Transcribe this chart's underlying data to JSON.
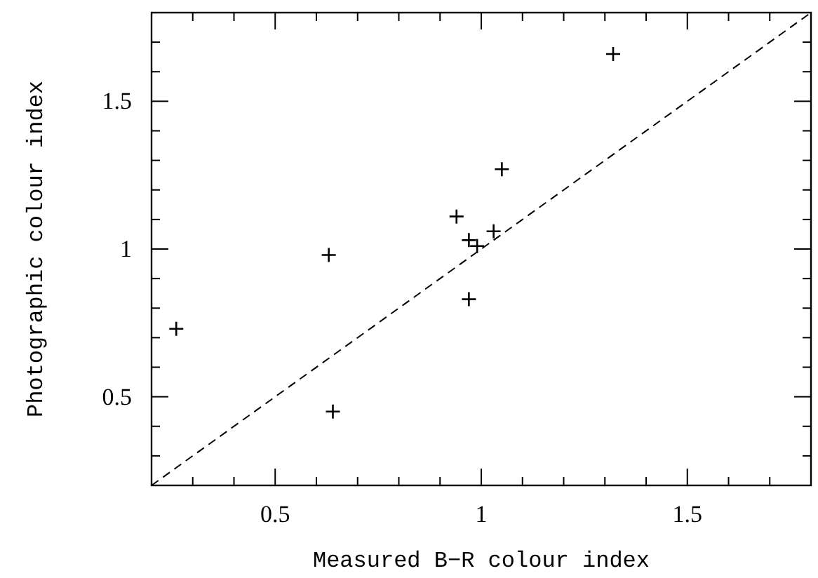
{
  "chart_data": {
    "type": "scatter",
    "xlabel": "Measured B−R colour index",
    "ylabel": "Photographic colour index",
    "xlim": [
      0.2,
      1.8
    ],
    "ylim": [
      0.2,
      1.8
    ],
    "xticks": [
      {
        "value": 0.3,
        "label": null
      },
      {
        "value": 0.4,
        "label": null
      },
      0.5,
      {
        "value": 0.6,
        "label": null
      },
      {
        "value": 0.7,
        "label": null
      },
      {
        "value": 0.8,
        "label": null
      },
      {
        "value": 0.9,
        "label": null
      },
      1,
      {
        "value": 1.1,
        "label": null
      },
      {
        "value": 1.2,
        "label": null
      },
      {
        "value": 1.3,
        "label": null
      },
      {
        "value": 1.4,
        "label": null
      },
      1.5,
      {
        "value": 1.6,
        "label": null
      },
      {
        "value": 1.7,
        "label": null
      }
    ],
    "yticks": [
      {
        "value": 0.3,
        "label": null
      },
      {
        "value": 0.4,
        "label": null
      },
      0.5,
      {
        "value": 0.6,
        "label": null
      },
      {
        "value": 0.7,
        "label": null
      },
      {
        "value": 0.8,
        "label": null
      },
      {
        "value": 0.9,
        "label": null
      },
      1,
      {
        "value": 1.1,
        "label": null
      },
      {
        "value": 1.2,
        "label": null
      },
      {
        "value": 1.3,
        "label": null
      },
      {
        "value": 1.4,
        "label": null
      },
      1.5,
      {
        "value": 1.6,
        "label": null
      },
      {
        "value": 1.7,
        "label": null
      }
    ],
    "grid": false,
    "series": [
      {
        "color": "#000000",
        "marker": "cross",
        "x": [
          1.32,
          1.05,
          0.94,
          0.97,
          0.99,
          1.03,
          0.63,
          0.26,
          0.97,
          0.64
        ],
        "values": [
          1.66,
          1.27,
          1.11,
          1.03,
          1.01,
          1.06,
          0.98,
          0.73,
          0.83,
          0.45
        ]
      },
      {
        "type": "line",
        "color": "#000000",
        "marker": "none",
        "line_style": "dashed",
        "x": [
          0.2,
          1.8
        ],
        "values": [
          0.2,
          1.8
        ]
      }
    ]
  }
}
